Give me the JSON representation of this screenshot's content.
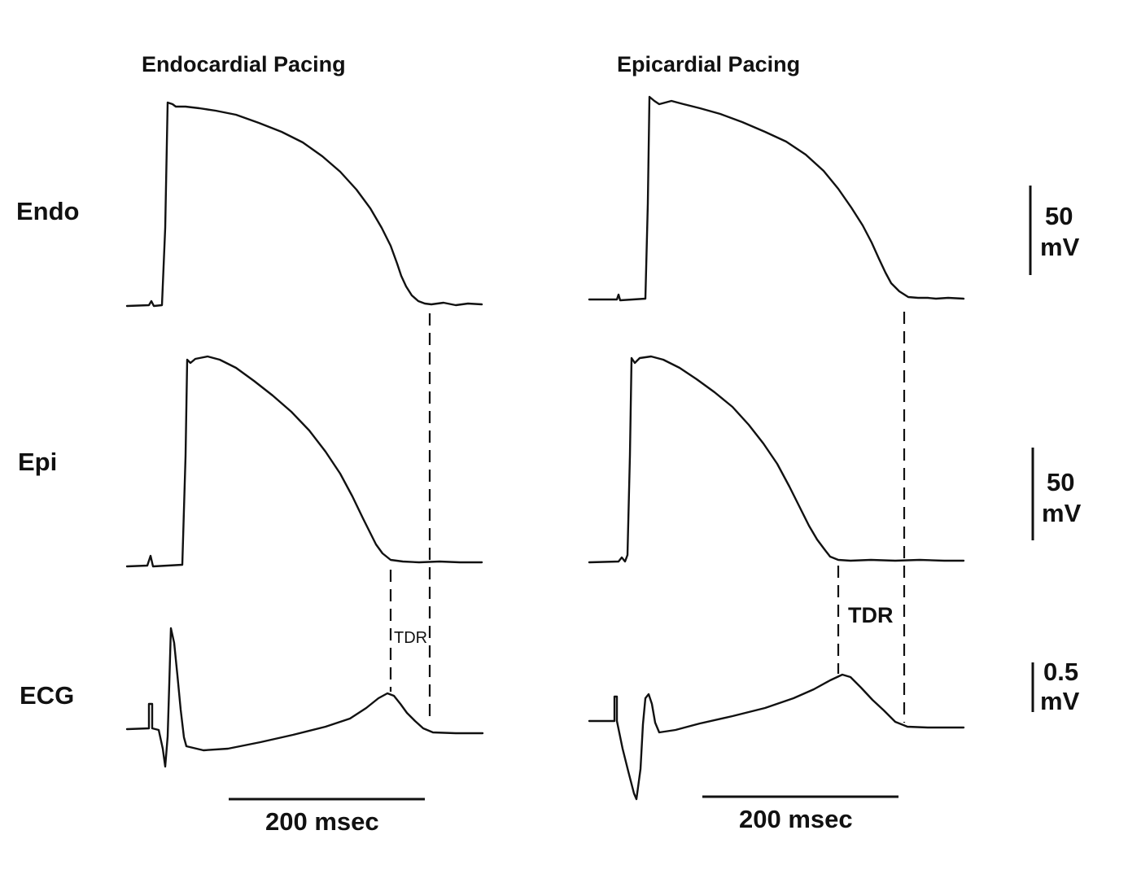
{
  "panels": [
    {
      "title": "Endocardial Pacing",
      "time_scale_label": "200 msec",
      "tdr_label": "TDR"
    },
    {
      "title": "Epicardial Pacing",
      "time_scale_label": "200 msec",
      "tdr_label": "TDR"
    }
  ],
  "rows": {
    "endo": "Endo",
    "epi": "Epi",
    "ecg": "ECG"
  },
  "voltage_scales": {
    "endo": {
      "value": "50",
      "unit": "mV"
    },
    "epi": {
      "value": "50",
      "unit": "mV"
    },
    "ecg": {
      "value": "0.5",
      "unit": "mV"
    }
  }
}
